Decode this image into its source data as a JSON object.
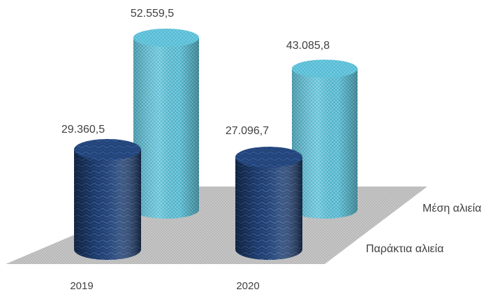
{
  "chart_data": {
    "type": "bar",
    "title": "",
    "categories": [
      "2019",
      "2020"
    ],
    "series": [
      {
        "name": "Παράκτια αλιεία",
        "values": [
          29360.5,
          27096.7
        ],
        "labels": [
          "29.360,5",
          "27.096,7"
        ],
        "color": "#1f3f73"
      },
      {
        "name": "Μέση αλιεία",
        "values": [
          52559.5,
          43085.8
        ],
        "labels": [
          "52.559,5",
          "43.085,8"
        ],
        "color": "#4eb6cf"
      }
    ],
    "floor_color": "#b8b8b8",
    "grid": false,
    "legend": "none",
    "shape": "cylinder-3d"
  }
}
